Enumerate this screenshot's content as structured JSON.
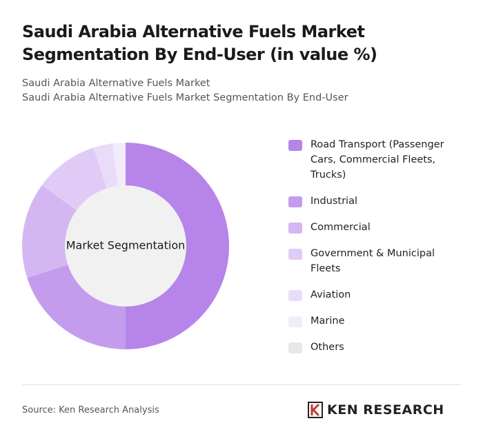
{
  "chart_data": {
    "type": "pie",
    "title": "Saudi Arabia Alternative Fuels Market Segmentation By End-User (in value %)",
    "subtitles": [
      "Saudi Arabia Alternative Fuels Market",
      "Saudi Arabia Alternative Fuels Market Segmentation By End-User"
    ],
    "center_label": "Market Segmentation",
    "categories": [
      "Road Transport (Passenger Cars, Commercial Fleets, Trucks)",
      "Industrial",
      "Commercial",
      "Government & Municipal Fleets",
      "Aviation",
      "Marine",
      "Others"
    ],
    "values": [
      50,
      20,
      15,
      10,
      3,
      2,
      0
    ],
    "colors": [
      "#b784ea",
      "#c49ced",
      "#d4b7f2",
      "#e0cbf6",
      "#e9dcf9",
      "#f2ebfb",
      "#e8e8e8"
    ],
    "source": "Source: Ken Research Analysis",
    "logo": "KEN RESEARCH"
  }
}
